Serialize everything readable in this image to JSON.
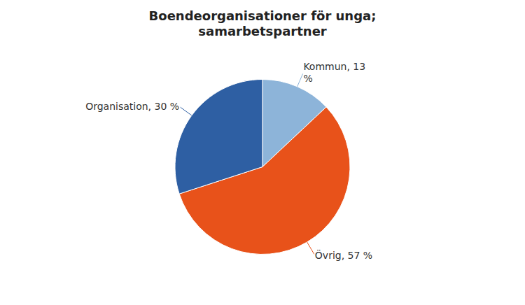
{
  "chart_data": {
    "type": "pie",
    "title": "Boendeorganisationer för unga;\nsamarbetspartner",
    "categories": [
      "Kommun, 13\n%",
      "Övrig, 57 %",
      "Organisation, 30 %"
    ],
    "values": [
      13,
      57,
      30
    ],
    "colors": [
      "#8DB4D9",
      "#E8521A",
      "#2E5FA3"
    ]
  }
}
